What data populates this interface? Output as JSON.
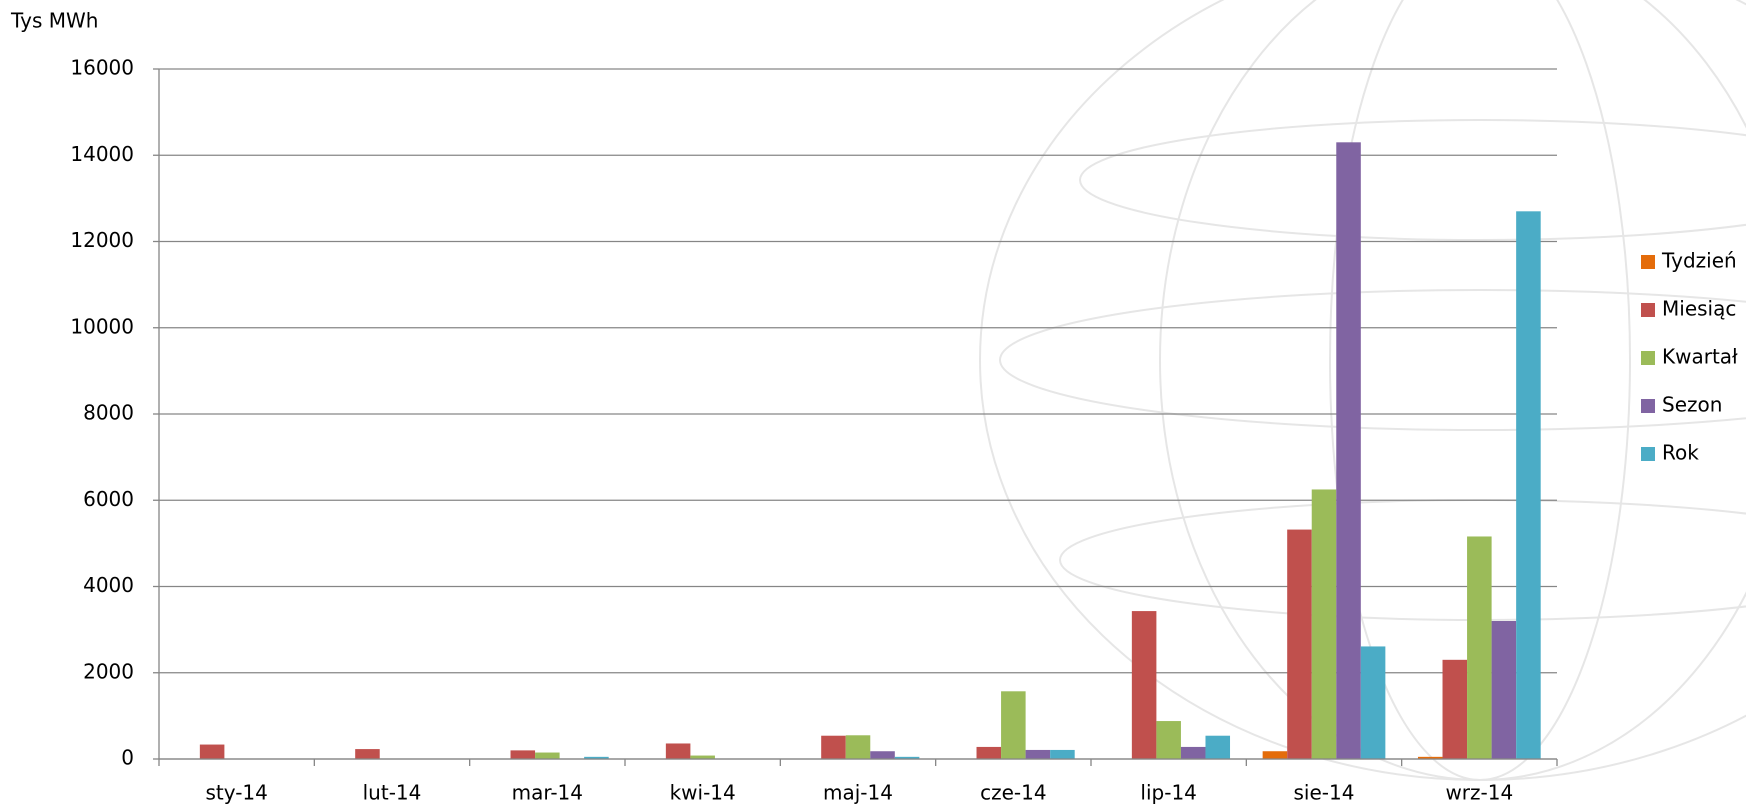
{
  "chart_data": {
    "type": "bar",
    "y_label": "Tys MWh",
    "categories": [
      "sty-14",
      "lut-14",
      "mar-14",
      "kwi-14",
      "maj-14",
      "cze-14",
      "lip-14",
      "sie-14",
      "wrz-14"
    ],
    "series": [
      {
        "name": "Tydzień",
        "color": "#e46c0a",
        "values": [
          0,
          0,
          0,
          0,
          0,
          0,
          0,
          180,
          50
        ]
      },
      {
        "name": "Miesiąc",
        "color": "#c0504d",
        "values": [
          335,
          230,
          200,
          360,
          540,
          280,
          3430,
          5320,
          2300
        ]
      },
      {
        "name": "Kwartał",
        "color": "#9bbb59",
        "values": [
          0,
          0,
          150,
          80,
          550,
          1570,
          880,
          6250,
          5160
        ]
      },
      {
        "name": "Sezon",
        "color": "#8064a2",
        "values": [
          0,
          0,
          0,
          0,
          180,
          210,
          280,
          14300,
          3200
        ]
      },
      {
        "name": "Rok",
        "color": "#4bacc6",
        "values": [
          0,
          0,
          50,
          0,
          50,
          210,
          540,
          2610,
          12700
        ]
      }
    ],
    "ylim": [
      0,
      16000
    ],
    "yticks": [
      0,
      2000,
      4000,
      6000,
      8000,
      10000,
      12000,
      14000,
      16000
    ],
    "grid": true,
    "legend": "right"
  }
}
